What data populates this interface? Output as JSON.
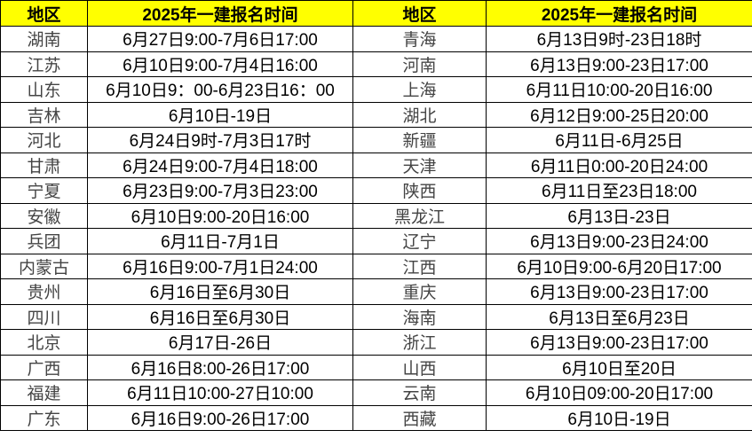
{
  "header": {
    "region_label": "地区",
    "time_label": "2025年一建报名时间"
  },
  "colors": {
    "header_bg": "#ffff00",
    "region_text": "#444444",
    "date_text": "#000000"
  },
  "left": [
    {
      "region": "湖南",
      "time": "6月27日9:00-7月6日17:00"
    },
    {
      "region": "江苏",
      "time": "6月10日9:00-7月4日16:00"
    },
    {
      "region": "山东",
      "time": "6月10日9：00-6月23日16：00"
    },
    {
      "region": "吉林",
      "time": "6月10日-19日"
    },
    {
      "region": "河北",
      "time": "6月24日9时-7月3日17时"
    },
    {
      "region": "甘肃",
      "time": "6月24日9:00-7月4日18:00"
    },
    {
      "region": "宁夏",
      "time": "6月23日9:00-7月3日23:00"
    },
    {
      "region": "安徽",
      "time": "6月10日9:00-20日16:00"
    },
    {
      "region": "兵团",
      "time": "6月11日-7月1日"
    },
    {
      "region": "内蒙古",
      "time": "6月16日9:00-7月1日24:00"
    },
    {
      "region": "贵州",
      "time": "6月16日至6月30日"
    },
    {
      "region": "四川",
      "time": "6月16日至6月30日"
    },
    {
      "region": "北京",
      "time": "6月17日-26日"
    },
    {
      "region": "广西",
      "time": "6月16日8:00-26日17:00"
    },
    {
      "region": "福建",
      "time": "6月11日10:00-27日10:00"
    },
    {
      "region": "广东",
      "time": "6月16日9:00-26日17:00"
    }
  ],
  "right": [
    {
      "region": "青海",
      "time": "6月13日9时-23日18时"
    },
    {
      "region": "河南",
      "time": "6月13日9:00-23日17:00"
    },
    {
      "region": "上海",
      "time": "6月11日10:00-20日16:00"
    },
    {
      "region": "湖北",
      "time": "6月12日9:00-25日20:00"
    },
    {
      "region": "新疆",
      "time": "6月11日-6月25日"
    },
    {
      "region": "天津",
      "time": "6月11日0:00-20日24:00"
    },
    {
      "region": "陕西",
      "time": "6月11日至23日18:00"
    },
    {
      "region": "黑龙江",
      "time": "6月13日-23日"
    },
    {
      "region": "辽宁",
      "time": "6月13日9:00-23日24:00"
    },
    {
      "region": "江西",
      "time": "6月10日9:00-6月20日17:00"
    },
    {
      "region": "重庆",
      "time": "6月13日9:00-23日17:00"
    },
    {
      "region": "海南",
      "time": "6月13日至6月23日"
    },
    {
      "region": "浙江",
      "time": "6月13日9:00-23日17:00"
    },
    {
      "region": "山西",
      "time": "6月10日至20日"
    },
    {
      "region": "云南",
      "time": "6月10日09:00-20日17:00"
    },
    {
      "region": "西藏",
      "time": "6月10日-19日"
    }
  ]
}
